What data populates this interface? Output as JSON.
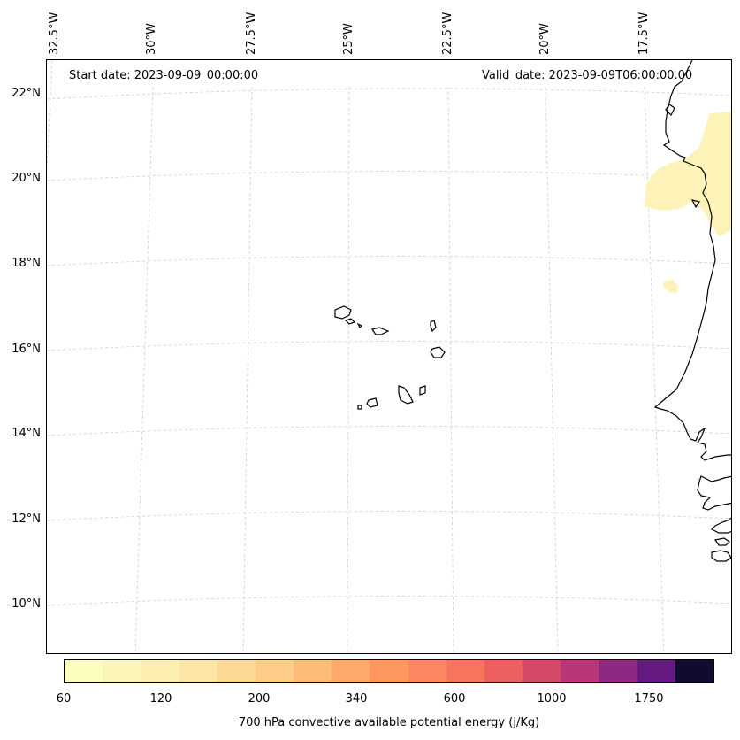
{
  "map": {
    "start_date": "Start date: 2023-09-09_00:00:00",
    "valid_date": "Valid_date: 2023-09-09T06:00:00.00",
    "lat_labels": [
      "22°N",
      "20°N",
      "18°N",
      "16°N",
      "14°N",
      "12°N",
      "10°N"
    ],
    "lon_labels": [
      "32.5°W",
      "30°W",
      "27.5°W",
      "25°W",
      "22.5°W",
      "20°W",
      "17.5°W"
    ]
  },
  "colorbar": {
    "title": "700 hPa convective available potential energy (j/Kg)",
    "ticks": [
      "60",
      "120",
      "200",
      "340",
      "600",
      "1000",
      "1750"
    ],
    "colors": [
      "#fcfdbf",
      "#fcf5b8",
      "#fcefb0",
      "#fde6a4",
      "#fdd995",
      "#fecb88",
      "#febb7a",
      "#fea96d",
      "#fe9860",
      "#fb8861",
      "#f6755c",
      "#ec5f5e",
      "#d44868",
      "#b73779",
      "#8c2981",
      "#641a80",
      "#100c2f"
    ]
  },
  "colors": {
    "cape_low": "#fdf3b8",
    "coastline": "#000000",
    "gridline": "#cccccc"
  }
}
